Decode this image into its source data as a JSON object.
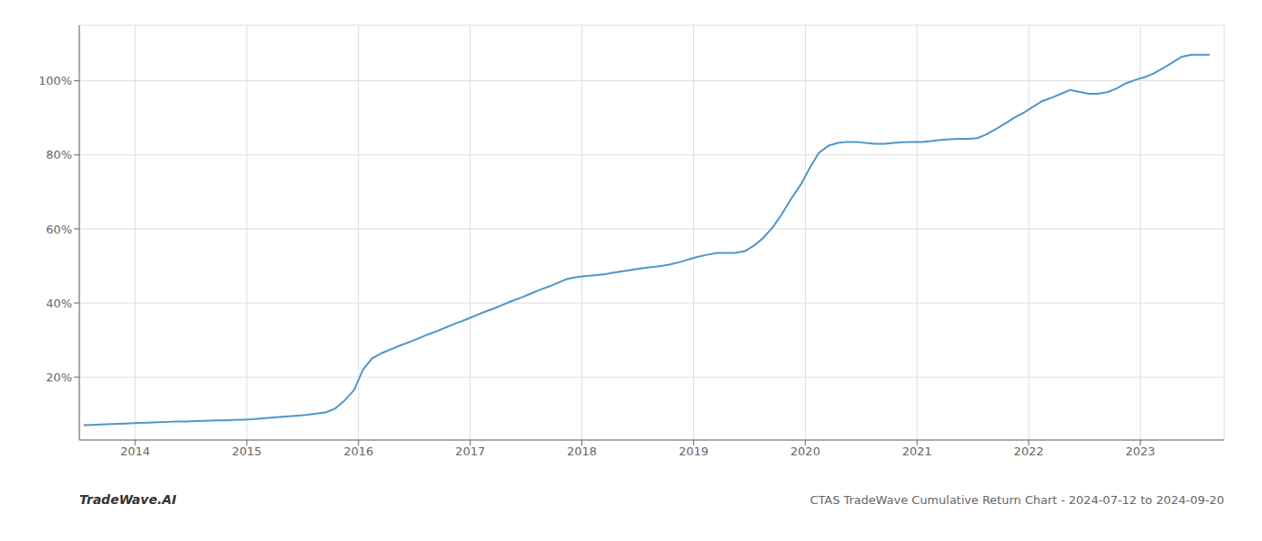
{
  "chart_data": {
    "type": "line",
    "title": "CTAS TradeWave Cumulative Return Chart - 2024-07-12 to 2024-09-20",
    "watermark": "TradeWave.AI",
    "color": "#4d96c9",
    "grid": true,
    "x": [
      2013.54,
      2013.62,
      2013.7,
      2013.79,
      2013.87,
      2013.96,
      2014.04,
      2014.12,
      2014.21,
      2014.29,
      2014.37,
      2014.46,
      2014.54,
      2014.62,
      2014.71,
      2014.79,
      2014.87,
      2014.96,
      2015.04,
      2015.12,
      2015.21,
      2015.29,
      2015.37,
      2015.46,
      2015.54,
      2015.62,
      2015.71,
      2015.79,
      2015.87,
      2015.96,
      2016.04,
      2016.12,
      2016.21,
      2016.29,
      2016.37,
      2016.46,
      2016.54,
      2016.62,
      2016.71,
      2016.79,
      2016.87,
      2016.96,
      2017.04,
      2017.12,
      2017.21,
      2017.29,
      2017.37,
      2017.46,
      2017.54,
      2017.62,
      2017.71,
      2017.79,
      2017.87,
      2017.96,
      2018.04,
      2018.12,
      2018.21,
      2018.29,
      2018.37,
      2018.46,
      2018.54,
      2018.62,
      2018.71,
      2018.79,
      2018.87,
      2018.96,
      2019.04,
      2019.12,
      2019.21,
      2019.29,
      2019.37,
      2019.46,
      2019.54,
      2019.62,
      2019.71,
      2019.79,
      2019.87,
      2019.96,
      2020.04,
      2020.12,
      2020.21,
      2020.29,
      2020.37,
      2020.46,
      2020.54,
      2020.62,
      2020.71,
      2020.79,
      2020.87,
      2020.96,
      2021.04,
      2021.12,
      2021.21,
      2021.29,
      2021.37,
      2021.46,
      2021.54,
      2021.62,
      2021.71,
      2021.79,
      2021.87,
      2021.96,
      2022.04,
      2022.12,
      2022.21,
      2022.29,
      2022.37,
      2022.46,
      2022.54,
      2022.62,
      2022.71,
      2022.79,
      2022.87,
      2022.96,
      2023.04,
      2023.12,
      2023.21,
      2023.29,
      2023.37,
      2023.46,
      2023.54,
      2023.62
    ],
    "values": [
      7.0,
      7.1,
      7.2,
      7.3,
      7.4,
      7.5,
      7.6,
      7.7,
      7.8,
      7.9,
      8.0,
      8.0,
      8.1,
      8.2,
      8.3,
      8.3,
      8.4,
      8.5,
      8.6,
      8.8,
      9.0,
      9.2,
      9.4,
      9.6,
      9.8,
      10.1,
      10.5,
      11.5,
      13.5,
      16.5,
      22.0,
      25.0,
      26.5,
      27.5,
      28.5,
      29.5,
      30.5,
      31.5,
      32.5,
      33.5,
      34.5,
      35.5,
      36.5,
      37.5,
      38.5,
      39.5,
      40.5,
      41.5,
      42.5,
      43.5,
      44.5,
      45.5,
      46.5,
      47.0,
      47.3,
      47.5,
      47.8,
      48.2,
      48.6,
      49.0,
      49.4,
      49.7,
      50.0,
      50.4,
      51.0,
      51.8,
      52.5,
      53.0,
      53.5,
      53.5,
      53.5,
      54.0,
      55.5,
      57.5,
      60.5,
      64.0,
      68.0,
      72.0,
      76.5,
      80.5,
      82.5,
      83.2,
      83.5,
      83.5,
      83.2,
      83.0,
      83.0,
      83.2,
      83.4,
      83.5,
      83.5,
      83.7,
      84.0,
      84.2,
      84.3,
      84.3,
      84.5,
      85.5,
      87.0,
      88.5,
      90.0,
      91.5,
      93.0,
      94.5,
      95.5,
      96.5,
      97.5,
      97.0,
      96.5,
      96.5,
      97.0,
      98.0,
      99.3,
      100.3,
      101.0,
      102.0,
      103.5,
      105.0,
      106.5,
      107.0,
      107.0,
      107.0
    ],
    "xlim": [
      2013.5,
      2023.75
    ],
    "ylim": [
      3,
      115
    ],
    "xticks": [
      2014,
      2015,
      2016,
      2017,
      2018,
      2019,
      2020,
      2021,
      2022,
      2023
    ],
    "yticks": [
      {
        "value": 20,
        "label": "20%"
      },
      {
        "value": 40,
        "label": "40%"
      },
      {
        "value": 60,
        "label": "60%"
      },
      {
        "value": 80,
        "label": "80%"
      },
      {
        "value": 100,
        "label": "100%"
      }
    ]
  }
}
